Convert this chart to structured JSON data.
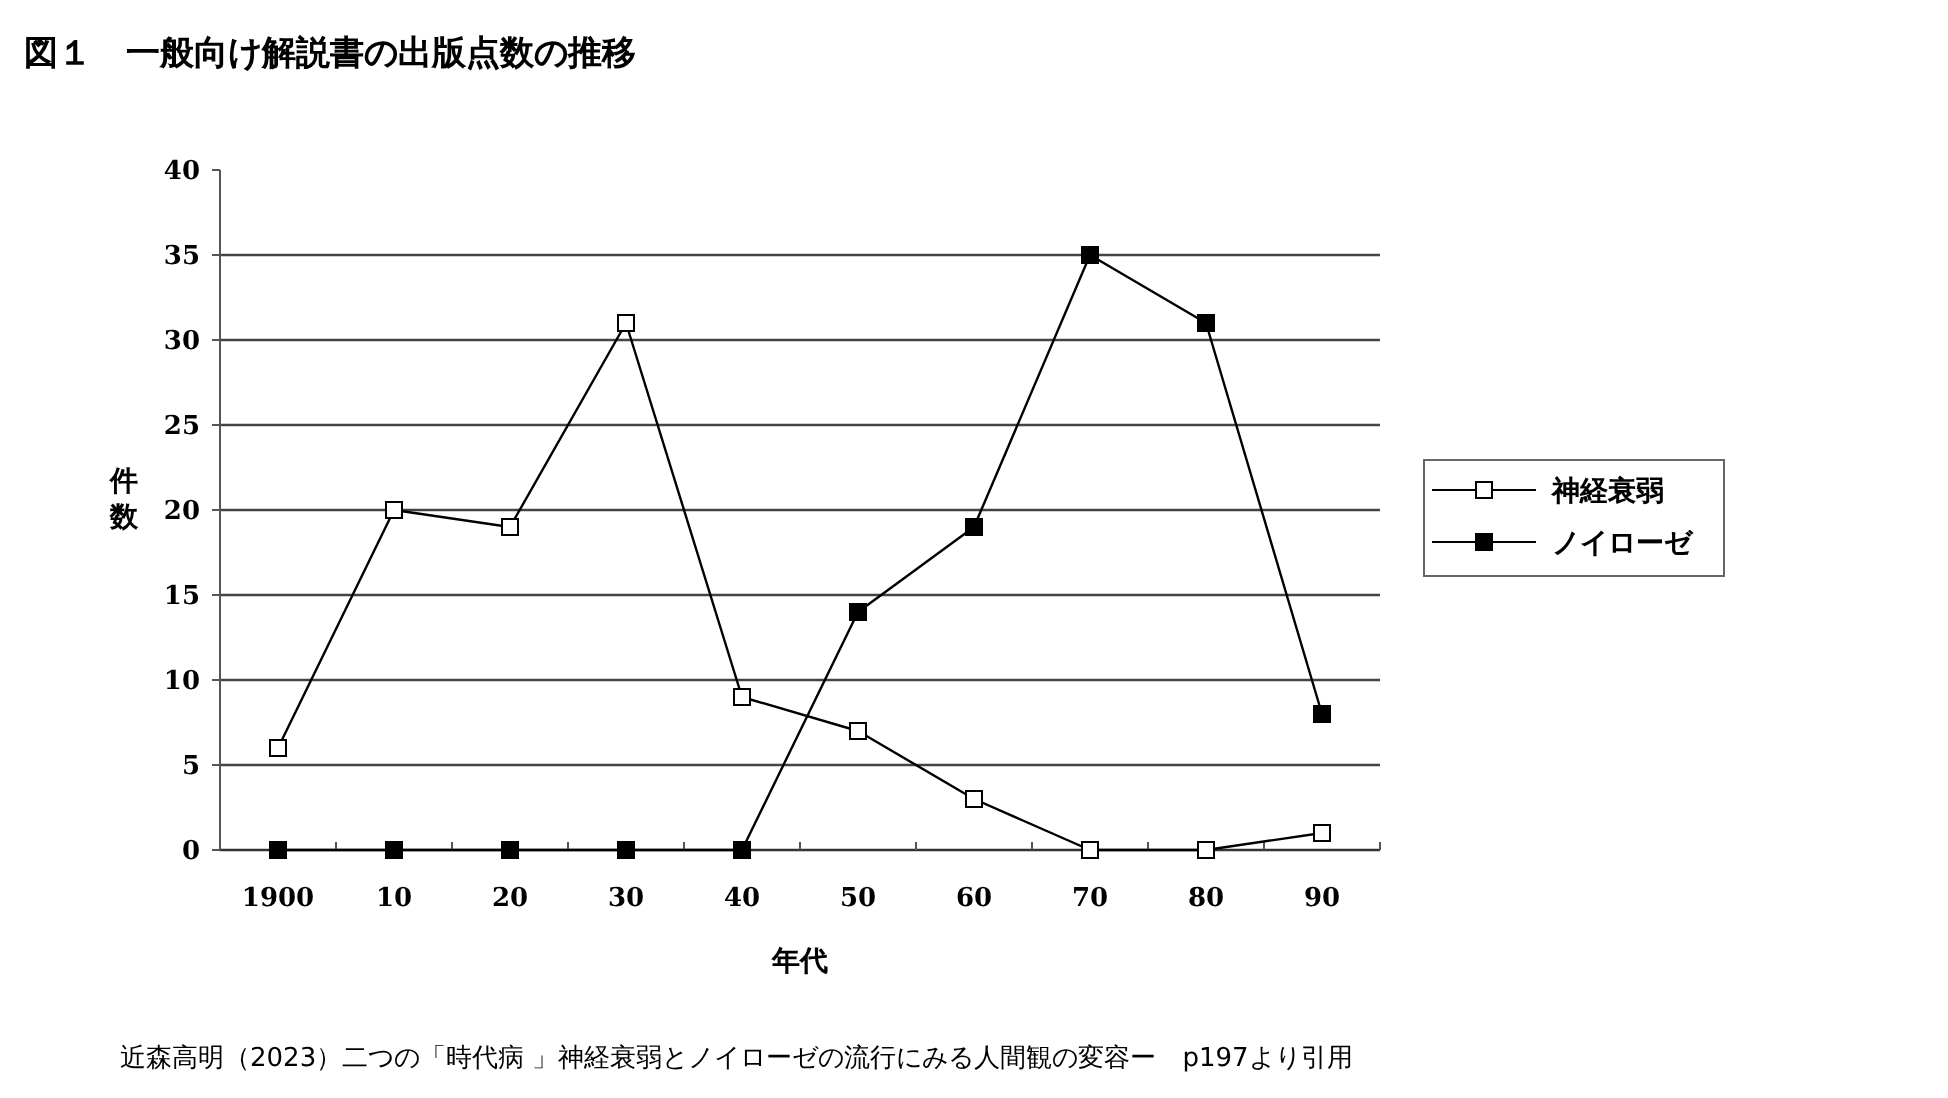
{
  "chart_data": {
    "type": "line",
    "title": "図１　一般向け解説書の出版点数の推移",
    "xlabel": "年代",
    "ylabel": "件数",
    "categories": [
      "1900",
      "10",
      "20",
      "30",
      "40",
      "50",
      "60",
      "70",
      "80",
      "90"
    ],
    "series": [
      {
        "name": "神経衰弱",
        "color": "#000000",
        "values": [
          6,
          20,
          19,
          31,
          9,
          7,
          3,
          0,
          0,
          1
        ]
      },
      {
        "name": "ノイローゼ",
        "color": "#000000",
        "values": [
          0,
          0,
          0,
          0,
          0,
          14,
          19,
          35,
          31,
          8
        ]
      }
    ],
    "ylim": [
      0,
      40
    ],
    "yticks": [
      0,
      5,
      10,
      15,
      20,
      25,
      30,
      35,
      40
    ],
    "grid": "y",
    "legend": "right",
    "marker": "square",
    "line_style": "solid",
    "annotations": [
      "近森高明（2023）二つの「時代病 」神経衰弱とノイローゼの流行にみる人間観の変容ー　p197より引用"
    ]
  }
}
